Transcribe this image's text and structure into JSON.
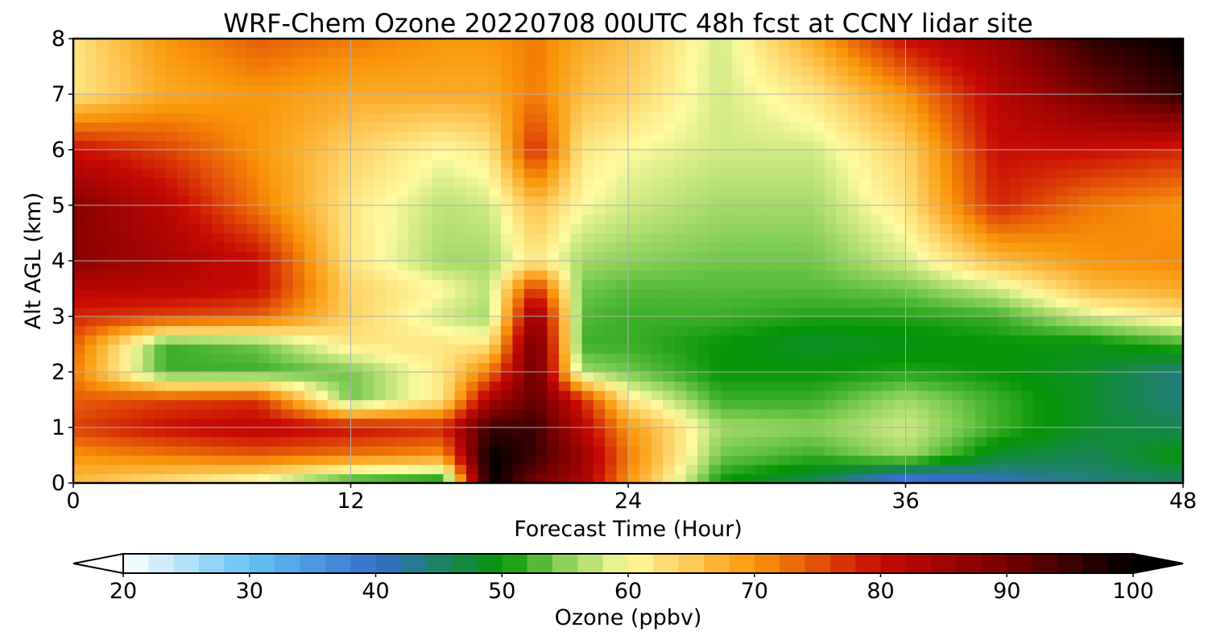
{
  "chart_data": {
    "type": "heatmap",
    "title": "WRF-Chem Ozone  20220708 00UTC 48h fcst at CCNY lidar site",
    "xlabel": "Forecast Time (Hour)",
    "ylabel": "Alt AGL (km)",
    "xlim": [
      0,
      48
    ],
    "ylim": [
      0,
      8
    ],
    "xticks": [
      0,
      12,
      24,
      36,
      48
    ],
    "yticks": [
      0,
      1,
      2,
      3,
      4,
      5,
      6,
      7,
      8
    ],
    "grid": true,
    "x": [
      0,
      4,
      8,
      12,
      16,
      18,
      20,
      22,
      24,
      28,
      32,
      36,
      40,
      44,
      48
    ],
    "y": [
      0,
      0.5,
      1,
      1.5,
      2,
      2.5,
      3,
      3.5,
      4,
      5,
      6,
      7,
      8
    ],
    "values": [
      [
        66,
        62,
        58,
        50,
        48,
        100,
        90,
        84,
        70,
        50,
        46,
        36,
        40,
        44,
        45
      ],
      [
        70,
        72,
        74,
        72,
        70,
        100,
        95,
        86,
        72,
        54,
        52,
        56,
        48,
        46,
        50
      ],
      [
        76,
        80,
        82,
        80,
        78,
        95,
        95,
        82,
        70,
        56,
        55,
        58,
        52,
        48,
        46
      ],
      [
        74,
        76,
        77,
        54,
        62,
        84,
        92,
        78,
        62,
        52,
        52,
        56,
        52,
        48,
        44
      ],
      [
        72,
        52,
        52,
        54,
        62,
        72,
        92,
        56,
        54,
        50,
        50,
        51,
        50,
        48,
        44
      ],
      [
        74,
        52,
        54,
        62,
        62,
        62,
        92,
        52,
        52,
        50,
        48,
        49,
        50,
        49,
        52
      ],
      [
        78,
        76,
        74,
        64,
        58,
        56,
        88,
        53,
        52,
        52,
        51,
        51,
        52,
        58,
        62
      ],
      [
        82,
        82,
        80,
        64,
        60,
        57,
        78,
        54,
        53,
        53,
        53,
        54,
        58,
        66,
        68
      ],
      [
        88,
        84,
        80,
        62,
        56,
        56,
        62,
        56,
        55,
        54,
        54,
        58,
        66,
        70,
        71
      ],
      [
        88,
        82,
        72,
        62,
        57,
        58,
        66,
        60,
        58,
        56,
        56,
        62,
        78,
        72,
        70
      ],
      [
        80,
        76,
        70,
        64,
        60,
        62,
        78,
        62,
        60,
        58,
        58,
        64,
        80,
        80,
        78
      ],
      [
        62,
        68,
        70,
        68,
        68,
        68,
        72,
        66,
        64,
        58,
        62,
        70,
        82,
        90,
        96
      ],
      [
        62,
        70,
        74,
        72,
        70,
        70,
        72,
        68,
        66,
        58,
        68,
        80,
        86,
        96,
        100
      ]
    ],
    "colorbar": {
      "label": "Ozone  (ppbv)",
      "range": [
        20,
        100
      ],
      "ticks": [
        20,
        30,
        40,
        50,
        60,
        70,
        80,
        90,
        100
      ],
      "extend": "both"
    }
  }
}
